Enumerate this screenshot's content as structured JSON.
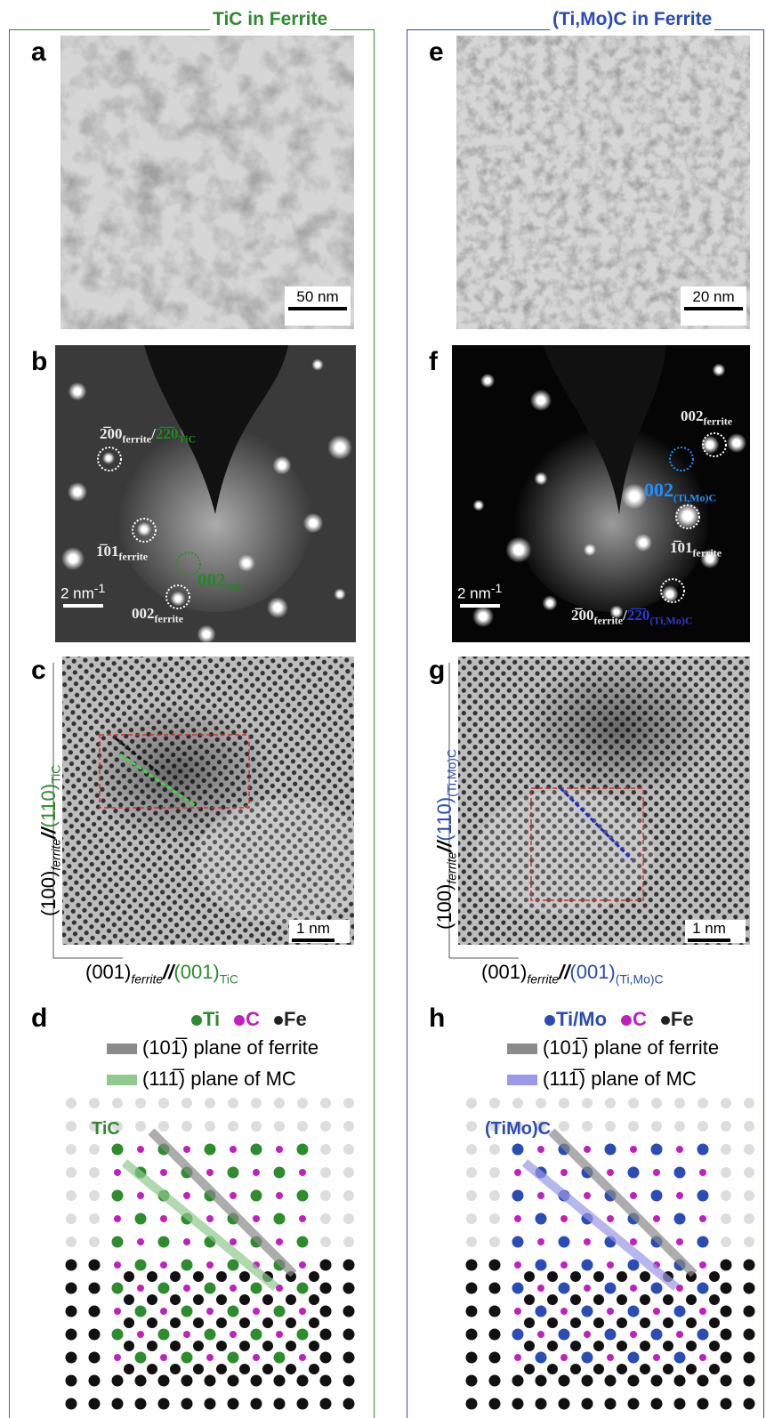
{
  "columns": [
    {
      "title": "TiC in Ferrite",
      "color": "#2e8b2e",
      "panels": [
        {
          "letter": "a",
          "scale_bar": [
            {
              "text": "50 nm"
            }
          ]
        },
        {
          "letter": "b",
          "scale_bar": [
            {
              "text": "2 nm"
            },
            {
              "text": "-1",
              "sup": true
            }
          ],
          "spot_labels": [
            [
              {
                "text": "2̅00"
              },
              {
                "text": "ferrite",
                "sub": true
              },
              {
                "text": "/"
              },
              {
                "text": "2̅2̅0",
                "color": "#1f8a1f"
              },
              {
                "text": "TiC",
                "sub": true,
                "color": "#1f8a1f"
              }
            ],
            [
              {
                "text": "1̅01"
              },
              {
                "text": "ferrite",
                "sub": true
              }
            ],
            [
              {
                "text": "002",
                "color": "#1f8a1f"
              },
              {
                "text": "TiC",
                "sub": true,
                "color": "#1f8a1f"
              }
            ],
            [
              {
                "text": "002"
              },
              {
                "text": "ferrite",
                "sub": true
              }
            ]
          ]
        },
        {
          "letter": "c",
          "scale_bar": [
            {
              "text": "1 nm"
            }
          ],
          "y_axis_label": [
            {
              "text": "(100)"
            },
            {
              "text": "ferrite",
              "sub": true,
              "italic": true
            },
            {
              "text": "//",
              "italic": true
            },
            {
              "text": "(110)",
              "color": "#2e8b2e"
            },
            {
              "text": "TiC",
              "sub": true,
              "color": "#2e8b2e"
            }
          ],
          "x_axis_label": [
            {
              "text": "(001)"
            },
            {
              "text": "ferrite",
              "sub": true,
              "italic": true
            },
            {
              "text": "//",
              "italic": true
            },
            {
              "text": "(001)",
              "color": "#2e8b2e"
            },
            {
              "text": "TiC",
              "sub": true,
              "color": "#2e8b2e"
            }
          ]
        },
        {
          "letter": "d",
          "atoms": [
            {
              "text": "Ti",
              "color": "#2e8b2e"
            },
            {
              "text": "C",
              "color": "#c020c0"
            },
            {
              "text": "Fe",
              "color": "#222222"
            }
          ],
          "planes": [
            {
              "color": "#8a8a8a",
              "label": "(101̅) plane of ferrite"
            },
            {
              "color": "#8fc98f",
              "label": "(111̅) plane of MC"
            }
          ],
          "structure_label": "TiC"
        }
      ]
    },
    {
      "title": "(Ti,Mo)C in Ferrite",
      "color": "#2b4bb5",
      "panels": [
        {
          "letter": "e",
          "scale_bar": [
            {
              "text": "20 nm"
            }
          ]
        },
        {
          "letter": "f",
          "scale_bar": [
            {
              "text": "2 nm"
            },
            {
              "text": "-1",
              "sup": true
            }
          ],
          "spot_labels": [
            [
              {
                "text": "002"
              },
              {
                "text": "ferrite",
                "sub": true
              }
            ],
            [
              {
                "text": "002",
                "color": "#1e90ff"
              },
              {
                "text": "(Ti,Mo)C",
                "sub": true,
                "color": "#1e90ff"
              }
            ],
            [
              {
                "text": "1̅01"
              },
              {
                "text": "ferrite",
                "sub": true
              }
            ],
            [
              {
                "text": "2̅00"
              },
              {
                "text": "ferrite",
                "sub": true
              },
              {
                "text": "/"
              },
              {
                "text": "2̅2̅0",
                "color": "#2b3bd5"
              },
              {
                "text": "(Ti,Mo)C",
                "sub": true,
                "color": "#2b3bd5"
              }
            ]
          ]
        },
        {
          "letter": "g",
          "scale_bar": [
            {
              "text": "1 nm"
            }
          ],
          "y_axis_label": [
            {
              "text": "(100)"
            },
            {
              "text": "ferrite",
              "sub": true,
              "italic": true
            },
            {
              "text": "//",
              "italic": true
            },
            {
              "text": "(110)",
              "color": "#2b4bb5"
            },
            {
              "text": "(Ti,Mo)C",
              "sub": true,
              "color": "#2b4bb5"
            }
          ],
          "x_axis_label": [
            {
              "text": "(001)"
            },
            {
              "text": "ferrite",
              "sub": true,
              "italic": true
            },
            {
              "text": "//",
              "italic": true
            },
            {
              "text": "(001)",
              "color": "#2b4bb5"
            },
            {
              "text": "(Ti,Mo)C",
              "sub": true,
              "color": "#2b4bb5"
            }
          ]
        },
        {
          "letter": "h",
          "atoms": [
            {
              "text": "Ti/Mo",
              "color": "#2b4bb5"
            },
            {
              "text": "C",
              "color": "#c020c0"
            },
            {
              "text": "Fe",
              "color": "#222222"
            }
          ],
          "planes": [
            {
              "color": "#8a8a8a",
              "label": "(101̅) plane of ferrite"
            },
            {
              "color": "#9a9ae8",
              "label": "(111̅) plane of MC"
            }
          ],
          "structure_label": "(TiMo)C"
        }
      ]
    }
  ]
}
